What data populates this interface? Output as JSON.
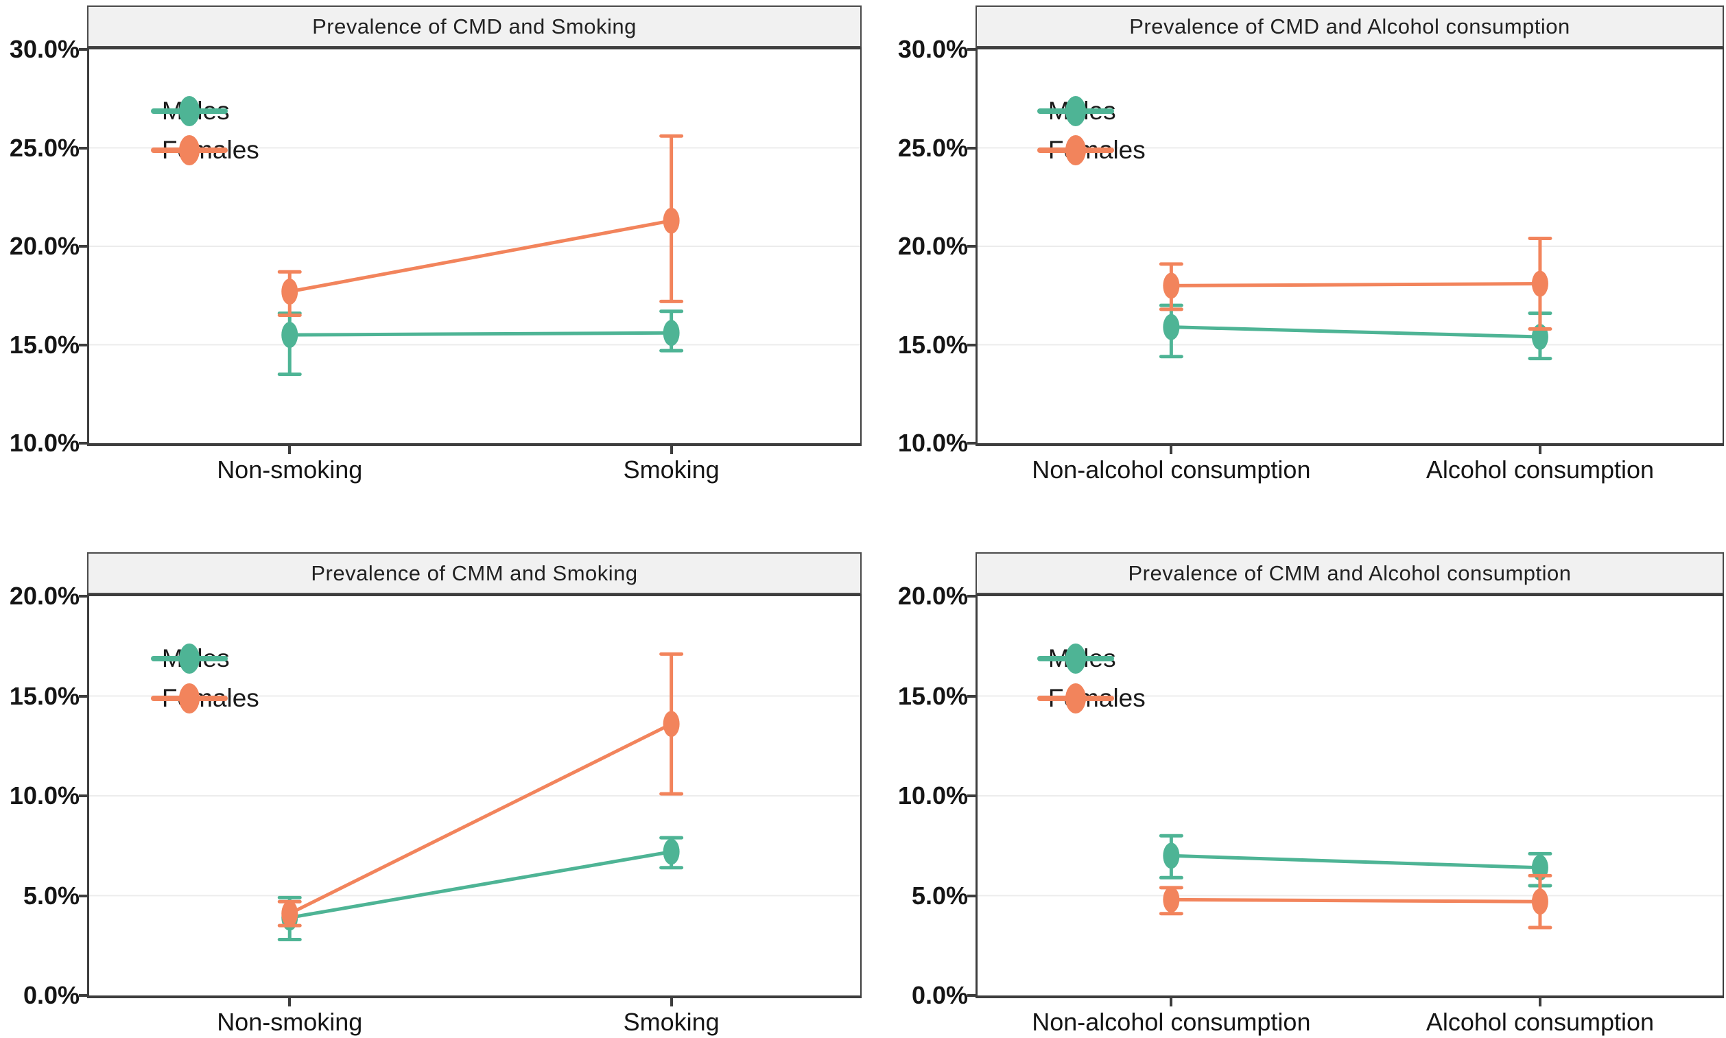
{
  "figure": {
    "background": "#ffffff",
    "description": "Four-panel error-bar line chart figure"
  },
  "colors": {
    "males": "#4EB495",
    "females": "#F2845C",
    "axis": "#3d3d3d",
    "grid": "#ececec",
    "title_bar_bg": "#f1f1f1",
    "text": "#151515"
  },
  "legend": {
    "males_label": "Males",
    "females_label": "Females",
    "position": "upper-left"
  },
  "chart_data": [
    {
      "type": "line",
      "title": "Prevalence of CMD and Smoking",
      "categories": [
        "Non-smoking",
        "Smoking"
      ],
      "xlabel": "",
      "ylabel": "",
      "ylim": [
        10,
        30
      ],
      "grid": "horizontal",
      "legend_position": "upper-left",
      "yticks": [
        {
          "label": "30.0%",
          "value": 30
        },
        {
          "label": "25.0%",
          "value": 25
        },
        {
          "label": "20.0%",
          "value": 20
        },
        {
          "label": "15.0%",
          "value": 15
        },
        {
          "label": "10.0%",
          "value": 10
        }
      ],
      "series": [
        {
          "name": "Males",
          "color": "#4EB495",
          "values": [
            15.5,
            15.6
          ],
          "ci_low": [
            13.5,
            14.7
          ],
          "ci_high": [
            16.6,
            16.7
          ]
        },
        {
          "name": "Females",
          "color": "#F2845C",
          "values": [
            17.7,
            21.3
          ],
          "ci_low": [
            16.5,
            17.2
          ],
          "ci_high": [
            18.7,
            25.6
          ]
        }
      ]
    },
    {
      "type": "line",
      "title": "Prevalence of CMD and Alcohol consumption",
      "categories": [
        "Non-alcohol consumption",
        "Alcohol consumption"
      ],
      "xlabel": "",
      "ylabel": "",
      "ylim": [
        10,
        30
      ],
      "grid": "horizontal",
      "legend_position": "upper-left",
      "yticks": [
        {
          "label": "30.0%",
          "value": 30
        },
        {
          "label": "25.0%",
          "value": 25
        },
        {
          "label": "20.0%",
          "value": 20
        },
        {
          "label": "15.0%",
          "value": 15
        },
        {
          "label": "10.0%",
          "value": 10
        }
      ],
      "series": [
        {
          "name": "Males",
          "color": "#4EB495",
          "values": [
            15.9,
            15.4
          ],
          "ci_low": [
            14.4,
            14.3
          ],
          "ci_high": [
            17.0,
            16.6
          ]
        },
        {
          "name": "Females",
          "color": "#F2845C",
          "values": [
            18.0,
            18.1
          ],
          "ci_low": [
            16.8,
            15.8
          ],
          "ci_high": [
            19.1,
            20.4
          ]
        }
      ]
    },
    {
      "type": "line",
      "title": "Prevalence of CMM and Smoking",
      "categories": [
        "Non-smoking",
        "Smoking"
      ],
      "xlabel": "",
      "ylabel": "",
      "ylim": [
        0,
        20
      ],
      "grid": "horizontal",
      "legend_position": "upper-left",
      "yticks": [
        {
          "label": "20.0%",
          "value": 20
        },
        {
          "label": "15.0%",
          "value": 15
        },
        {
          "label": "10.0%",
          "value": 10
        },
        {
          "label": "5.0%",
          "value": 5
        },
        {
          "label": "0.0%",
          "value": 0
        }
      ],
      "series": [
        {
          "name": "Males",
          "color": "#4EB495",
          "values": [
            3.9,
            7.2
          ],
          "ci_low": [
            2.8,
            6.4
          ],
          "ci_high": [
            4.9,
            7.9
          ]
        },
        {
          "name": "Females",
          "color": "#F2845C",
          "values": [
            4.1,
            13.6
          ],
          "ci_low": [
            3.5,
            10.1
          ],
          "ci_high": [
            4.7,
            17.1
          ]
        }
      ]
    },
    {
      "type": "line",
      "title": "Prevalence of CMM and Alcohol consumption",
      "categories": [
        "Non-alcohol consumption",
        "Alcohol consumption"
      ],
      "xlabel": "",
      "ylabel": "",
      "ylim": [
        0,
        20
      ],
      "grid": "horizontal",
      "legend_position": "upper-left",
      "yticks": [
        {
          "label": "20.0%",
          "value": 20
        },
        {
          "label": "15.0%",
          "value": 15
        },
        {
          "label": "10.0%",
          "value": 10
        },
        {
          "label": "5.0%",
          "value": 5
        },
        {
          "label": "0.0%",
          "value": 0
        }
      ],
      "series": [
        {
          "name": "Males",
          "color": "#4EB495",
          "values": [
            7.0,
            6.4
          ],
          "ci_low": [
            5.9,
            5.5
          ],
          "ci_high": [
            8.0,
            7.1
          ]
        },
        {
          "name": "Females",
          "color": "#F2845C",
          "values": [
            4.8,
            4.7
          ],
          "ci_low": [
            4.1,
            3.4
          ],
          "ci_high": [
            5.4,
            6.0
          ]
        }
      ]
    }
  ]
}
